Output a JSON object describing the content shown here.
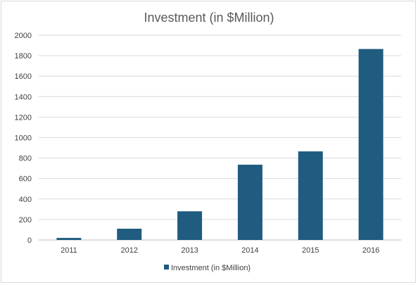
{
  "chart_data": {
    "type": "bar",
    "title": "Investment (in $Million)",
    "categories": [
      "2011",
      "2012",
      "2013",
      "2014",
      "2015",
      "2016"
    ],
    "series": [
      {
        "name": "Investment (in $Million)",
        "values": [
          20,
          110,
          280,
          735,
          865,
          1865
        ],
        "color": "#1f5c7f"
      }
    ],
    "xlabel": "",
    "ylabel": "",
    "ylim": [
      0,
      2000
    ],
    "yticks": [
      "0",
      "200",
      "400",
      "600",
      "800",
      "1000",
      "1200",
      "1400",
      "1600",
      "1800",
      "2000"
    ],
    "grid": true,
    "legend_position": "bottom"
  }
}
